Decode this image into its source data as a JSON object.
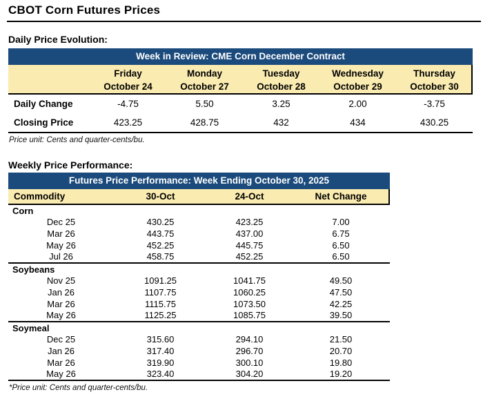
{
  "title": "CBOT Corn Futures Prices",
  "colors": {
    "header_blue": "#1B4B7C",
    "header_tan": "#FAEBB0",
    "text": "#000000"
  },
  "daily_section_label": "Daily Price Evolution:",
  "weekly_section_label": "Weekly Price Performance:",
  "daily_table": {
    "header": "Week in Review: CME Corn December Contract",
    "columns": [
      {
        "day": "Friday",
        "date": "October 24"
      },
      {
        "day": "Monday",
        "date": "October 27"
      },
      {
        "day": "Tuesday",
        "date": "October 28"
      },
      {
        "day": "Wednesday",
        "date": "October 29"
      },
      {
        "day": "Thursday",
        "date": "October 30"
      }
    ],
    "rows": [
      {
        "label": "Daily Change",
        "values": [
          "-4.75",
          "5.50",
          "3.25",
          "2.00",
          "-3.75"
        ]
      },
      {
        "label": "Closing Price",
        "values": [
          "423.25",
          "428.75",
          "432",
          "434",
          "430.25"
        ]
      }
    ],
    "footnote": "Price unit: Cents and quarter-cents/bu."
  },
  "weekly_table": {
    "header": "Futures Price Performance: Week Ending October 30, 2025",
    "columns": [
      "Commodity",
      "30-Oct",
      "24-Oct",
      "Net Change"
    ],
    "sections": [
      {
        "name": "Corn",
        "rows": [
          [
            "Dec 25",
            "430.25",
            "423.25",
            "7.00"
          ],
          [
            "Mar 26",
            "443.75",
            "437.00",
            "6.75"
          ],
          [
            "May 26",
            "452.25",
            "445.75",
            "6.50"
          ],
          [
            "Jul 26",
            "458.75",
            "452.25",
            "6.50"
          ]
        ]
      },
      {
        "name": "Soybeans",
        "rows": [
          [
            "Nov 25",
            "1091.25",
            "1041.75",
            "49.50"
          ],
          [
            "Jan 26",
            "1107.75",
            "1060.25",
            "47.50"
          ],
          [
            "Mar 26",
            "1115.75",
            "1073.50",
            "42.25"
          ],
          [
            "May 26",
            "1125.25",
            "1085.75",
            "39.50"
          ]
        ]
      },
      {
        "name": "Soymeal",
        "rows": [
          [
            "Dec 25",
            "315.60",
            "294.10",
            "21.50"
          ],
          [
            "Jan 26",
            "317.40",
            "296.70",
            "20.70"
          ],
          [
            "Mar 26",
            "319.90",
            "300.10",
            "19.80"
          ],
          [
            "May 26",
            "323.40",
            "304.20",
            "19.20"
          ]
        ]
      }
    ],
    "footnote": "*Price unit: Cents and quarter-cents/bu."
  }
}
